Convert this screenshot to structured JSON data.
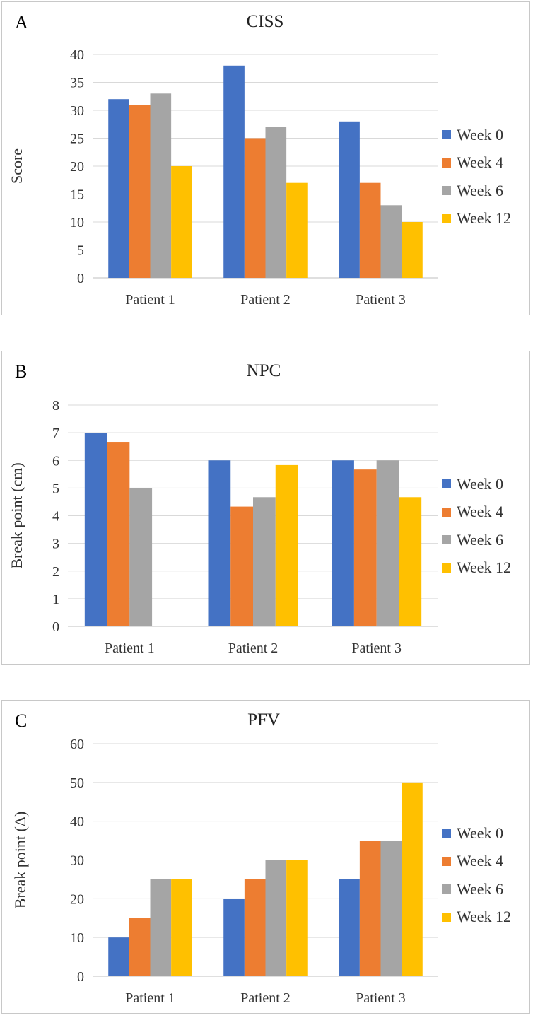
{
  "chart_data": [
    {
      "type": "bar",
      "panel_label": "A",
      "title": "CISS",
      "xlabel": "",
      "ylabel": "Score",
      "ylim": [
        0,
        40
      ],
      "yticks": [
        0,
        5,
        10,
        15,
        20,
        25,
        30,
        35,
        40
      ],
      "grid": true,
      "legend": "right",
      "categories": [
        "Patient 1",
        "Patient 2",
        "Patient 3"
      ],
      "series": [
        {
          "name": "Week 0",
          "color": "#4472C4",
          "values": [
            32,
            38,
            28
          ]
        },
        {
          "name": "Week 4",
          "color": "#ED7D31",
          "values": [
            31,
            25,
            17
          ]
        },
        {
          "name": "Week 6",
          "color": "#A5A5A5",
          "values": [
            33,
            27,
            13
          ]
        },
        {
          "name": "Week 12",
          "color": "#FFC000",
          "values": [
            20,
            17,
            10
          ]
        }
      ]
    },
    {
      "type": "bar",
      "panel_label": "B",
      "title": "NPC",
      "xlabel": "",
      "ylabel": "Break point (cm)",
      "ylim": [
        0,
        8
      ],
      "yticks": [
        0,
        1,
        2,
        3,
        4,
        5,
        6,
        7,
        8
      ],
      "grid": true,
      "legend": "right",
      "categories": [
        "Patient 1",
        "Patient 2",
        "Patient 3"
      ],
      "series": [
        {
          "name": "Week 0",
          "color": "#4472C4",
          "values": [
            7,
            6,
            6
          ]
        },
        {
          "name": "Week 4",
          "color": "#ED7D31",
          "values": [
            6.67,
            4.33,
            5.67
          ]
        },
        {
          "name": "Week 6",
          "color": "#A5A5A5",
          "values": [
            5,
            4.67,
            6
          ]
        },
        {
          "name": "Week 12",
          "color": "#FFC000",
          "values": [
            0,
            5.83,
            4.67
          ]
        }
      ]
    },
    {
      "type": "bar",
      "panel_label": "C",
      "title": "PFV",
      "xlabel": "",
      "ylabel": "Break point (Δ)",
      "ylim": [
        0,
        60
      ],
      "yticks": [
        0,
        10,
        20,
        30,
        40,
        50,
        60
      ],
      "grid": true,
      "legend": "right",
      "categories": [
        "Patient 1",
        "Patient 2",
        "Patient 3"
      ],
      "series": [
        {
          "name": "Week 0",
          "color": "#4472C4",
          "values": [
            10,
            20,
            25
          ]
        },
        {
          "name": "Week 4",
          "color": "#ED7D31",
          "values": [
            15,
            25,
            35
          ]
        },
        {
          "name": "Week 6",
          "color": "#A5A5A5",
          "values": [
            25,
            30,
            35
          ]
        },
        {
          "name": "Week 12",
          "color": "#FFC000",
          "values": [
            25,
            30,
            50
          ]
        }
      ]
    }
  ]
}
